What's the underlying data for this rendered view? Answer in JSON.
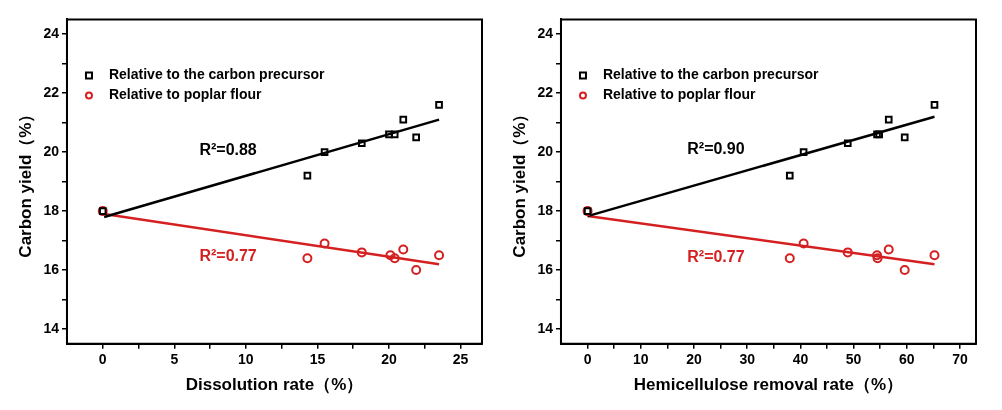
{
  "chart_data": [
    {
      "type": "scatter",
      "xlabel": "Dissolution rate（%）",
      "ylabel": "Carbon yield（%）",
      "xlim": [
        -2.5,
        26.5
      ],
      "xticks": [
        0,
        {
          "value": 2.5,
          "label": null
        },
        5,
        {
          "value": 7.5,
          "label": null
        },
        10,
        {
          "value": 12.5,
          "label": null
        },
        15,
        {
          "value": 17.5,
          "label": null
        },
        20,
        {
          "value": 22.5,
          "label": null
        },
        25
      ],
      "ylim": [
        13.5,
        24.5
      ],
      "yticks": [
        14,
        {
          "value": 15,
          "label": null
        },
        16,
        {
          "value": 17,
          "label": null
        },
        18,
        {
          "value": 19,
          "label": null
        },
        20,
        {
          "value": 21,
          "label": null
        },
        22,
        {
          "value": 23,
          "label": null
        },
        24
      ],
      "grid": false,
      "legend": "top left",
      "series": [
        {
          "name": "Relative to the carbon precursor",
          "color": "#000000",
          "marker": "square",
          "x": [
            0,
            14.3,
            15.5,
            18.1,
            20.0,
            20.4,
            21.0,
            21.9,
            23.5
          ],
          "values": [
            18.0,
            19.2,
            20.0,
            20.3,
            20.6,
            20.6,
            21.1,
            20.5,
            21.6
          ]
        },
        {
          "name": "Relative to poplar flour",
          "color": "#d42020",
          "marker": "circle",
          "x": [
            0,
            14.3,
            15.5,
            18.1,
            20.1,
            20.4,
            21.0,
            21.9,
            23.5
          ],
          "values": [
            18.0,
            16.4,
            16.9,
            16.6,
            16.5,
            16.4,
            16.7,
            16.0,
            16.5
          ]
        },
        {
          "type": "line",
          "color": "#000000",
          "marker": "none",
          "x": [
            0.1,
            23.5
          ],
          "values": [
            17.8,
            21.1
          ]
        },
        {
          "type": "line",
          "color": "#d42020",
          "marker": "none",
          "x": [
            0.1,
            23.5
          ],
          "values": [
            17.9,
            16.2
          ]
        }
      ],
      "annotations": [
        "R²=0.88",
        "R²=0.77"
      ]
    },
    {
      "type": "scatter",
      "xlabel": "Hemicellulose removal rate（%）",
      "ylabel": "Carbon yield（%）",
      "xlim": [
        -5,
        73
      ],
      "xticks": [
        0,
        {
          "value": 5,
          "label": null
        },
        10,
        {
          "value": 15,
          "label": null
        },
        20,
        {
          "value": 25,
          "label": null
        },
        30,
        {
          "value": 35,
          "label": null
        },
        40,
        {
          "value": 45,
          "label": null
        },
        50,
        {
          "value": 55,
          "label": null
        },
        60,
        {
          "value": 65,
          "label": null
        },
        70
      ],
      "ylim": [
        13.5,
        24.5
      ],
      "yticks": [
        14,
        {
          "value": 15,
          "label": null
        },
        16,
        {
          "value": 17,
          "label": null
        },
        18,
        {
          "value": 19,
          "label": null
        },
        20,
        {
          "value": 21,
          "label": null
        },
        22,
        {
          "value": 23,
          "label": null
        },
        24
      ],
      "grid": false,
      "legend": "top left",
      "series": [
        {
          "name": "Relative to the carbon precursor",
          "color": "#000000",
          "marker": "square",
          "x": [
            0,
            38.0,
            40.6,
            48.9,
            54.4,
            54.8,
            56.6,
            59.6,
            65.2
          ],
          "values": [
            18.0,
            19.2,
            20.0,
            20.3,
            20.6,
            20.6,
            21.1,
            20.5,
            21.6
          ]
        },
        {
          "name": "Relative to poplar flour",
          "color": "#d42020",
          "marker": "circle",
          "x": [
            0,
            38.0,
            40.6,
            48.9,
            54.4,
            54.5,
            56.6,
            59.6,
            65.2
          ],
          "values": [
            18.0,
            16.4,
            16.9,
            16.6,
            16.5,
            16.4,
            16.7,
            16.0,
            16.5
          ]
        },
        {
          "type": "line",
          "color": "#000000",
          "marker": "none",
          "x": [
            0,
            65.2
          ],
          "values": [
            17.83,
            21.2
          ]
        },
        {
          "type": "line",
          "color": "#d42020",
          "marker": "none",
          "x": [
            0,
            65.2
          ],
          "values": [
            17.83,
            16.2
          ]
        }
      ],
      "annotations": [
        "R²=0.90",
        "R²=0.77"
      ]
    }
  ]
}
